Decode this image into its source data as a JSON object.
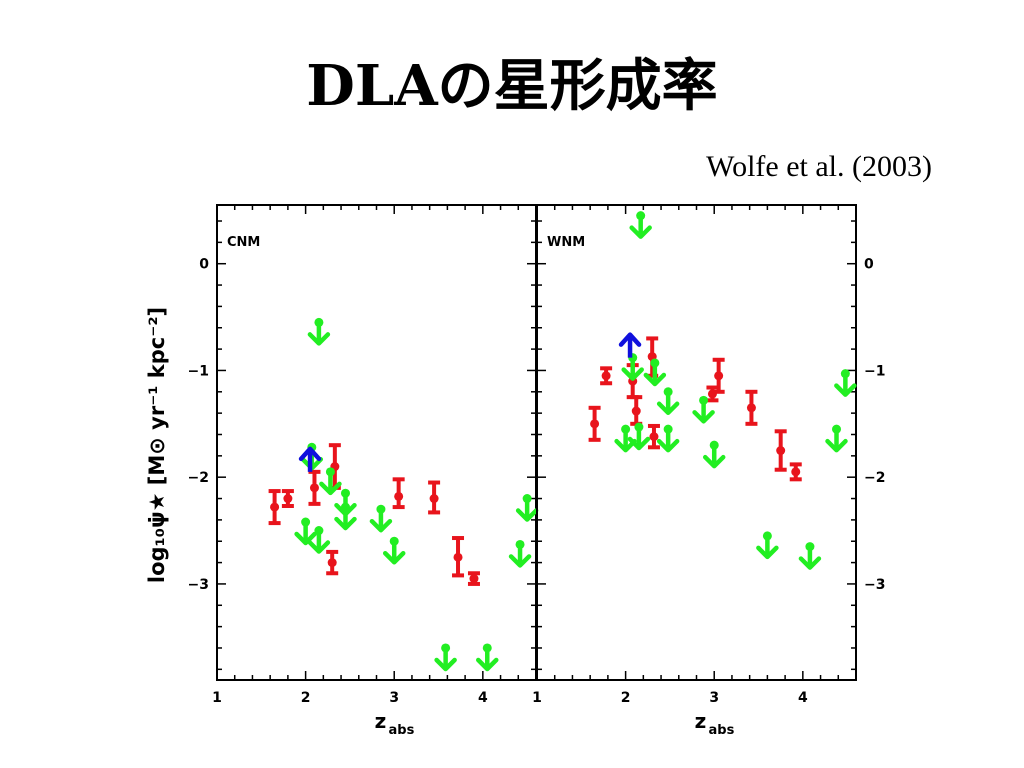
{
  "slide": {
    "title": "DLAの星形成率",
    "citation": "Wolfe et al. (2003)"
  },
  "chart_data": {
    "type": "scatter",
    "ylabel": "log₁₀ψ̇★ [M⊙ yr⁻¹ kpc⁻²]",
    "xlabel_main": "z",
    "xlabel_sub": "abs",
    "xlim": [
      1,
      4.6
    ],
    "ylim": [
      -3.9,
      0.55
    ],
    "xticks": [
      1,
      2,
      3,
      4
    ],
    "yticks": [
      0,
      -1,
      -2,
      -3
    ],
    "ytick_labels": [
      "0",
      "−1",
      "−2",
      "−3"
    ],
    "colors": {
      "measurement": "#e8141c",
      "upper_limit": "#22ee22",
      "lower_limit": "#1010dd"
    },
    "panels": [
      {
        "label": "CNM",
        "measurements": [
          {
            "x": 1.65,
            "y": -2.28,
            "lo": -2.43,
            "hi": -2.13
          },
          {
            "x": 1.8,
            "y": -2.2,
            "lo": -2.27,
            "hi": -2.13
          },
          {
            "x": 2.1,
            "y": -2.1,
            "lo": -2.25,
            "hi": -1.95
          },
          {
            "x": 2.33,
            "y": -1.9,
            "lo": -2.1,
            "hi": -1.7
          },
          {
            "x": 2.3,
            "y": -2.8,
            "lo": -2.9,
            "hi": -2.7
          },
          {
            "x": 3.05,
            "y": -2.18,
            "lo": -2.28,
            "hi": -2.02
          },
          {
            "x": 3.45,
            "y": -2.2,
            "lo": -2.33,
            "hi": -2.05
          },
          {
            "x": 3.72,
            "y": -2.75,
            "lo": -2.92,
            "hi": -2.57
          },
          {
            "x": 3.9,
            "y": -2.95,
            "lo": -3.0,
            "hi": -2.9
          }
        ],
        "upper_limits": [
          {
            "x": 2.15,
            "y": -0.55
          },
          {
            "x": 2.07,
            "y": -1.72
          },
          {
            "x": 2.0,
            "y": -2.42
          },
          {
            "x": 2.15,
            "y": -2.5
          },
          {
            "x": 2.28,
            "y": -1.95
          },
          {
            "x": 2.45,
            "y": -2.15
          },
          {
            "x": 2.45,
            "y": -2.28
          },
          {
            "x": 2.85,
            "y": -2.3
          },
          {
            "x": 3.0,
            "y": -2.6
          },
          {
            "x": 4.42,
            "y": -2.63
          },
          {
            "x": 4.5,
            "y": -2.2
          },
          {
            "x": 3.58,
            "y": -3.6
          },
          {
            "x": 4.05,
            "y": -3.6
          }
        ],
        "lower_limits": [
          {
            "x": 2.05,
            "y": -1.95
          }
        ]
      },
      {
        "label": "WNM",
        "measurements": [
          {
            "x": 1.65,
            "y": -1.5,
            "lo": -1.65,
            "hi": -1.35
          },
          {
            "x": 1.78,
            "y": -1.05,
            "lo": -1.12,
            "hi": -0.98
          },
          {
            "x": 2.08,
            "y": -1.1,
            "lo": -1.25,
            "hi": -0.95
          },
          {
            "x": 2.12,
            "y": -1.38,
            "lo": -1.5,
            "hi": -1.25
          },
          {
            "x": 2.3,
            "y": -0.87,
            "lo": -1.05,
            "hi": -0.7
          },
          {
            "x": 2.32,
            "y": -1.62,
            "lo": -1.72,
            "hi": -1.52
          },
          {
            "x": 2.98,
            "y": -1.22,
            "lo": -1.28,
            "hi": -1.16
          },
          {
            "x": 3.05,
            "y": -1.05,
            "lo": -1.2,
            "hi": -0.9
          },
          {
            "x": 3.42,
            "y": -1.35,
            "lo": -1.5,
            "hi": -1.2
          },
          {
            "x": 3.75,
            "y": -1.75,
            "lo": -1.93,
            "hi": -1.57
          },
          {
            "x": 3.92,
            "y": -1.95,
            "lo": -2.02,
            "hi": -1.88
          }
        ],
        "upper_limits": [
          {
            "x": 2.17,
            "y": 0.45
          },
          {
            "x": 2.0,
            "y": -1.55
          },
          {
            "x": 2.08,
            "y": -0.88
          },
          {
            "x": 2.15,
            "y": -1.53
          },
          {
            "x": 2.33,
            "y": -0.93
          },
          {
            "x": 2.48,
            "y": -1.2
          },
          {
            "x": 2.48,
            "y": -1.55
          },
          {
            "x": 2.88,
            "y": -1.28
          },
          {
            "x": 3.0,
            "y": -1.7
          },
          {
            "x": 3.6,
            "y": -2.55
          },
          {
            "x": 4.08,
            "y": -2.65
          },
          {
            "x": 4.38,
            "y": -1.55
          },
          {
            "x": 4.48,
            "y": -1.03
          }
        ],
        "lower_limits": [
          {
            "x": 2.05,
            "y": -0.88
          }
        ]
      }
    ]
  }
}
